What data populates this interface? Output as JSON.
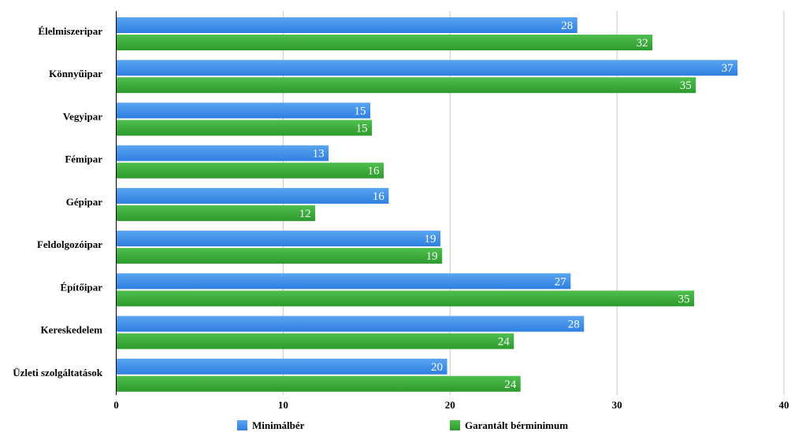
{
  "chart_data": {
    "type": "bar",
    "orientation": "horizontal",
    "categories": [
      "Élelmiszeripar",
      "Könnyűipar",
      "Vegyipar",
      "Fémipar",
      "Gépipar",
      "Feldolgozóipar",
      "Építőipar",
      "Kereskedelem",
      "Üzleti szolgáltatások"
    ],
    "series": [
      {
        "name": "Minimálbér",
        "color": "#2e7fe0",
        "values": [
          27.6,
          37.2,
          15.2,
          12.7,
          16.3,
          19.4,
          27.2,
          28.0,
          19.8
        ],
        "labels": [
          "28",
          "37",
          "15",
          "13",
          "16",
          "19",
          "27",
          "28",
          "20"
        ]
      },
      {
        "name": "Garantált bérminimum",
        "color": "#2c9a2c",
        "values": [
          32.1,
          34.7,
          15.3,
          16.0,
          11.9,
          19.5,
          34.6,
          23.8,
          24.2
        ],
        "labels": [
          "32",
          "35",
          "15",
          "16",
          "12",
          "19",
          "35",
          "24",
          "24"
        ]
      }
    ],
    "xlim": [
      0,
      40
    ],
    "xticks": [
      "0",
      "10",
      "20",
      "30",
      "40"
    ],
    "grid": true,
    "legend_position": "bottom"
  }
}
